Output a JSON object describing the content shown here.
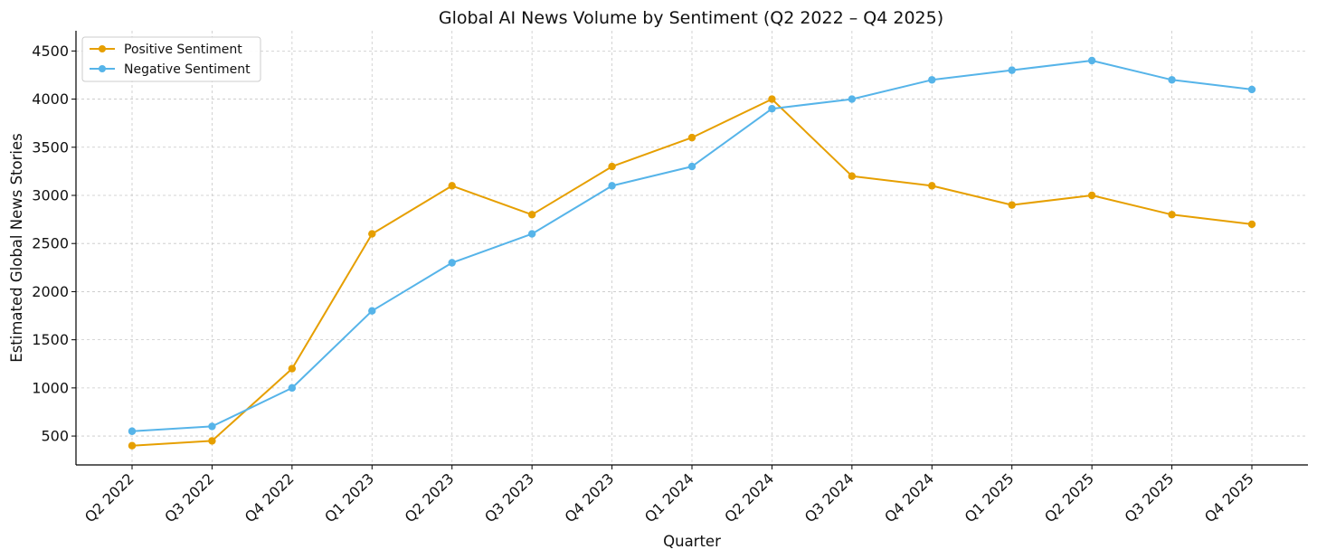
{
  "chart_data": {
    "type": "line",
    "title": "Global AI News Volume by Sentiment (Q2 2022 – Q4 2025)",
    "xlabel": "Quarter",
    "ylabel": "Estimated Global News Stories",
    "categories": [
      "Q2 2022",
      "Q3 2022",
      "Q4 2022",
      "Q1 2023",
      "Q2 2023",
      "Q3 2023",
      "Q4 2023",
      "Q1 2024",
      "Q2 2024",
      "Q3 2024",
      "Q4 2024",
      "Q1 2025",
      "Q2 2025",
      "Q3 2025",
      "Q4 2025"
    ],
    "yticks": [
      500,
      1000,
      1500,
      2000,
      2500,
      3000,
      3500,
      4000,
      4500
    ],
    "ylim": [
      200,
      4710
    ],
    "grid": true,
    "legend_position": "top-left",
    "series": [
      {
        "name": "Positive Sentiment",
        "color": "#E69F00",
        "values": [
          400,
          450,
          1200,
          2600,
          3100,
          2800,
          3300,
          3600,
          4000,
          3200,
          3100,
          2900,
          3000,
          2800,
          2700
        ]
      },
      {
        "name": "Negative Sentiment",
        "color": "#56B4E9",
        "values": [
          550,
          600,
          1000,
          1800,
          2300,
          2600,
          3100,
          3300,
          3900,
          4000,
          4200,
          4300,
          4400,
          4200,
          4100
        ]
      }
    ]
  }
}
